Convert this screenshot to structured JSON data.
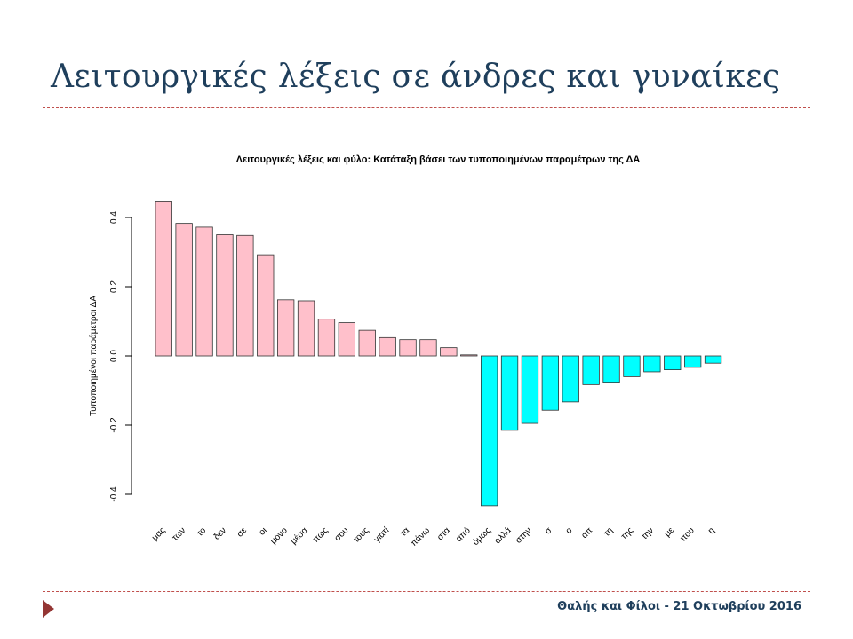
{
  "slide": {
    "title": "Λειτουργικές λέξεις σε άνδρες και γυναίκες",
    "footer": "Θαλής και Φίλοι - 21 Οκτωβρίου 2016",
    "accent_color": "#c0504d",
    "title_color": "#1f3f5c",
    "footer_arrow_icon": "triangle-right-icon"
  },
  "chart_data": {
    "type": "bar",
    "title": "Λειτουργικές λέξεις και φύλο: Κατάταξη βάσει των τυποποιημένων παραμέτρων της ΔΑ",
    "xlabel": "",
    "ylabel": "Τυποποιημένοι παράμετροι ΔΑ",
    "ylim": [
      -0.45,
      0.45
    ],
    "yticks": [
      -0.4,
      -0.2,
      0.0,
      0.2,
      0.4
    ],
    "ytick_labels": [
      "-0.4",
      "-0.2",
      "0.0",
      "0.2",
      "0.4"
    ],
    "grid": false,
    "positive_color": "#ffc0cb",
    "negative_color": "#00ffff",
    "categories": [
      "μας",
      "των",
      "το",
      "δεν",
      "σε",
      "οι",
      "μόνο",
      "μέσα",
      "πως",
      "σου",
      "τους",
      "γιατί",
      "τα",
      "πάνω",
      "στα",
      "από",
      "όμως",
      "αλλά",
      "στην",
      "σ",
      "ο",
      "απ",
      "τη",
      "της",
      "την",
      "με",
      "που",
      "η"
    ],
    "values": [
      0.445,
      0.383,
      0.372,
      0.35,
      0.348,
      0.292,
      0.162,
      0.159,
      0.106,
      0.096,
      0.074,
      0.053,
      0.047,
      0.047,
      0.024,
      0.003,
      -0.433,
      -0.215,
      -0.195,
      -0.157,
      -0.133,
      -0.083,
      -0.076,
      -0.06,
      -0.046,
      -0.04,
      -0.033,
      -0.021
    ]
  }
}
